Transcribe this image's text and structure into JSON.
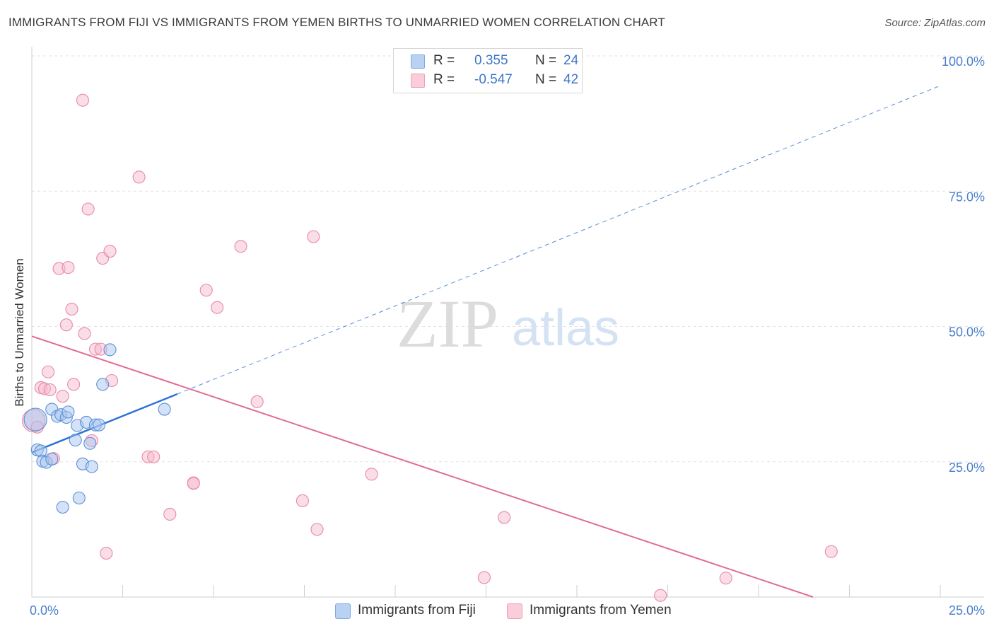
{
  "chart_data": {
    "type": "scatter",
    "title": "IMMIGRANTS FROM FIJI VS IMMIGRANTS FROM YEMEN BIRTHS TO UNMARRIED WOMEN CORRELATION CHART",
    "source": "Source: ZipAtlas.com",
    "watermark": {
      "zip": "ZIP",
      "atlas": "atlas"
    },
    "ylabel": "Births to Unmarried Women",
    "xlim": [
      0,
      25
    ],
    "ylim": [
      0,
      100
    ],
    "x_ticks": [
      {
        "value": 0,
        "label": "0.0%"
      },
      {
        "value": 25,
        "label": "25.0%"
      }
    ],
    "y_ticks": [
      {
        "value": 25,
        "label": "25.0%"
      },
      {
        "value": 50,
        "label": "50.0%"
      },
      {
        "value": 75,
        "label": "75.0%"
      },
      {
        "value": 100,
        "label": "100.0%"
      }
    ],
    "legend_stats": [
      {
        "series": "Immigrants from Fiji",
        "r_label": "R =",
        "r_value": "0.355",
        "n_label": "N =",
        "n_value": "24"
      },
      {
        "series": "Immigrants from Yemen",
        "r_label": "R =",
        "r_value": "-0.547",
        "n_label": "N =",
        "n_value": "42"
      }
    ],
    "series": [
      {
        "name": "Immigrants from Fiji",
        "color": "#5b8fd6",
        "fill": "#a9c6ef",
        "line_color": "#2d72d2",
        "trend": {
          "x0": 0.0,
          "y0": 26.7,
          "x1": 4.0,
          "y1": 37.5,
          "x_end": 25.0,
          "y_end": 94.5
        },
        "points": [
          {
            "x": 0.1,
            "y": 32.8,
            "big": true
          },
          {
            "x": 0.15,
            "y": 27.2
          },
          {
            "x": 0.25,
            "y": 27.0
          },
          {
            "x": 0.3,
            "y": 25.1
          },
          {
            "x": 0.4,
            "y": 24.9
          },
          {
            "x": 0.55,
            "y": 25.5
          },
          {
            "x": 0.55,
            "y": 34.7
          },
          {
            "x": 0.7,
            "y": 33.4
          },
          {
            "x": 0.8,
            "y": 33.7
          },
          {
            "x": 0.85,
            "y": 16.6
          },
          {
            "x": 0.95,
            "y": 33.2
          },
          {
            "x": 1.0,
            "y": 34.2
          },
          {
            "x": 1.2,
            "y": 29.0
          },
          {
            "x": 1.25,
            "y": 31.7
          },
          {
            "x": 1.3,
            "y": 18.3
          },
          {
            "x": 1.4,
            "y": 24.6
          },
          {
            "x": 1.5,
            "y": 32.3
          },
          {
            "x": 1.6,
            "y": 28.4
          },
          {
            "x": 1.65,
            "y": 24.1
          },
          {
            "x": 1.75,
            "y": 31.8
          },
          {
            "x": 1.85,
            "y": 31.8
          },
          {
            "x": 1.95,
            "y": 39.3
          },
          {
            "x": 2.15,
            "y": 45.7
          },
          {
            "x": 3.65,
            "y": 34.7
          }
        ]
      },
      {
        "name": "Immigrants from Yemen",
        "color": "#e88aa6",
        "fill": "#f6bccd",
        "line_color": "#e06b95",
        "trend": {
          "x0": 0.0,
          "y0": 48.2,
          "x1": 21.5,
          "y1": 0.0
        },
        "points": [
          {
            "x": 0.05,
            "y": 32.6,
            "big": true
          },
          {
            "x": 0.15,
            "y": 31.4
          },
          {
            "x": 0.25,
            "y": 38.7
          },
          {
            "x": 0.35,
            "y": 38.5
          },
          {
            "x": 0.45,
            "y": 41.6
          },
          {
            "x": 0.5,
            "y": 38.3
          },
          {
            "x": 0.6,
            "y": 25.6
          },
          {
            "x": 0.75,
            "y": 60.7
          },
          {
            "x": 0.85,
            "y": 37.1
          },
          {
            "x": 0.95,
            "y": 50.3
          },
          {
            "x": 1.0,
            "y": 60.9
          },
          {
            "x": 1.1,
            "y": 53.2
          },
          {
            "x": 1.15,
            "y": 39.3
          },
          {
            "x": 1.4,
            "y": 91.8
          },
          {
            "x": 1.45,
            "y": 48.7
          },
          {
            "x": 1.55,
            "y": 71.7
          },
          {
            "x": 1.65,
            "y": 28.9
          },
          {
            "x": 1.75,
            "y": 45.8
          },
          {
            "x": 1.9,
            "y": 45.8
          },
          {
            "x": 1.95,
            "y": 62.6
          },
          {
            "x": 2.05,
            "y": 8.1
          },
          {
            "x": 2.15,
            "y": 63.9
          },
          {
            "x": 2.2,
            "y": 40.0
          },
          {
            "x": 2.95,
            "y": 77.6
          },
          {
            "x": 3.2,
            "y": 25.9
          },
          {
            "x": 3.35,
            "y": 25.9
          },
          {
            "x": 3.8,
            "y": 15.3
          },
          {
            "x": 4.45,
            "y": 21.1
          },
          {
            "x": 4.8,
            "y": 56.7
          },
          {
            "x": 5.1,
            "y": 53.5
          },
          {
            "x": 5.75,
            "y": 64.8
          },
          {
            "x": 6.2,
            "y": 36.1
          },
          {
            "x": 7.45,
            "y": 17.8
          },
          {
            "x": 7.75,
            "y": 66.6
          },
          {
            "x": 7.85,
            "y": 12.5
          },
          {
            "x": 9.35,
            "y": 22.7
          },
          {
            "x": 12.45,
            "y": 3.6
          },
          {
            "x": 13.0,
            "y": 14.7
          },
          {
            "x": 17.3,
            "y": 0.3
          },
          {
            "x": 19.1,
            "y": 3.5
          },
          {
            "x": 22.0,
            "y": 8.4
          },
          {
            "x": 4.45,
            "y": 21.0
          }
        ]
      }
    ]
  }
}
